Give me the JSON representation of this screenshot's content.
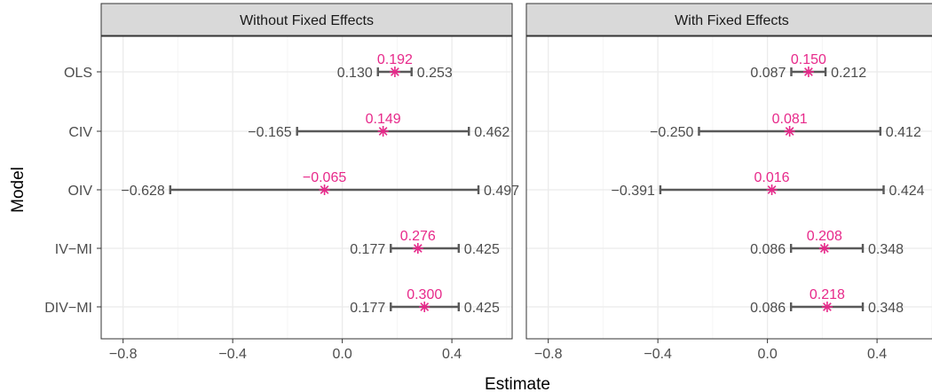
{
  "chart_data": {
    "type": "forest",
    "xlabel": "Estimate",
    "ylabel": "Model",
    "xlim": [
      -0.88,
      0.62
    ],
    "x_ticks": [
      -0.8,
      -0.4,
      0.0,
      0.4
    ],
    "x_tick_labels": [
      "−0.8",
      "−0.4",
      "0.0",
      "0.4"
    ],
    "categories": [
      "OLS",
      "CIV",
      "OIV",
      "IV−MI",
      "DIV−MI"
    ],
    "grid": true,
    "colors": {
      "point": "#e7298a",
      "interval": "#595959",
      "strip_fill": "#d9d9d9",
      "grid_major": "#ebebeb",
      "grid_minor": "#f5f5f5",
      "panel_border": "#333333",
      "bound_label": "#4d4d4d"
    },
    "panels": [
      {
        "title": "Without Fixed Effects",
        "rows": [
          {
            "model": "OLS",
            "estimate": 0.192,
            "lower": 0.13,
            "upper": 0.253,
            "estimate_label": "0.192",
            "lower_label": "0.130",
            "upper_label": "0.253"
          },
          {
            "model": "CIV",
            "estimate": 0.149,
            "lower": -0.165,
            "upper": 0.462,
            "estimate_label": "0.149",
            "lower_label": "−0.165",
            "upper_label": "0.462"
          },
          {
            "model": "OIV",
            "estimate": -0.065,
            "lower": -0.628,
            "upper": 0.497,
            "estimate_label": "−0.065",
            "lower_label": "−0.628",
            "upper_label": "0.497"
          },
          {
            "model": "IV−MI",
            "estimate": 0.276,
            "lower": 0.177,
            "upper": 0.425,
            "estimate_label": "0.276",
            "lower_label": "0.177",
            "upper_label": "0.425"
          },
          {
            "model": "DIV−MI",
            "estimate": 0.3,
            "lower": 0.177,
            "upper": 0.425,
            "estimate_label": "0.300",
            "lower_label": "0.177",
            "upper_label": "0.425"
          }
        ]
      },
      {
        "title": "With Fixed Effects",
        "rows": [
          {
            "model": "OLS",
            "estimate": 0.15,
            "lower": 0.087,
            "upper": 0.212,
            "estimate_label": "0.150",
            "lower_label": "0.087",
            "upper_label": "0.212"
          },
          {
            "model": "CIV",
            "estimate": 0.081,
            "lower": -0.25,
            "upper": 0.412,
            "estimate_label": "0.081",
            "lower_label": "−0.250",
            "upper_label": "0.412"
          },
          {
            "model": "OIV",
            "estimate": 0.016,
            "lower": -0.391,
            "upper": 0.424,
            "estimate_label": "0.016",
            "lower_label": "−0.391",
            "upper_label": "0.424"
          },
          {
            "model": "IV−MI",
            "estimate": 0.208,
            "lower": 0.086,
            "upper": 0.348,
            "estimate_label": "0.208",
            "lower_label": "0.086",
            "upper_label": "0.348"
          },
          {
            "model": "DIV−MI",
            "estimate": 0.218,
            "lower": 0.086,
            "upper": 0.348,
            "estimate_label": "0.218",
            "lower_label": "0.086",
            "upper_label": "0.348"
          }
        ]
      }
    ]
  }
}
